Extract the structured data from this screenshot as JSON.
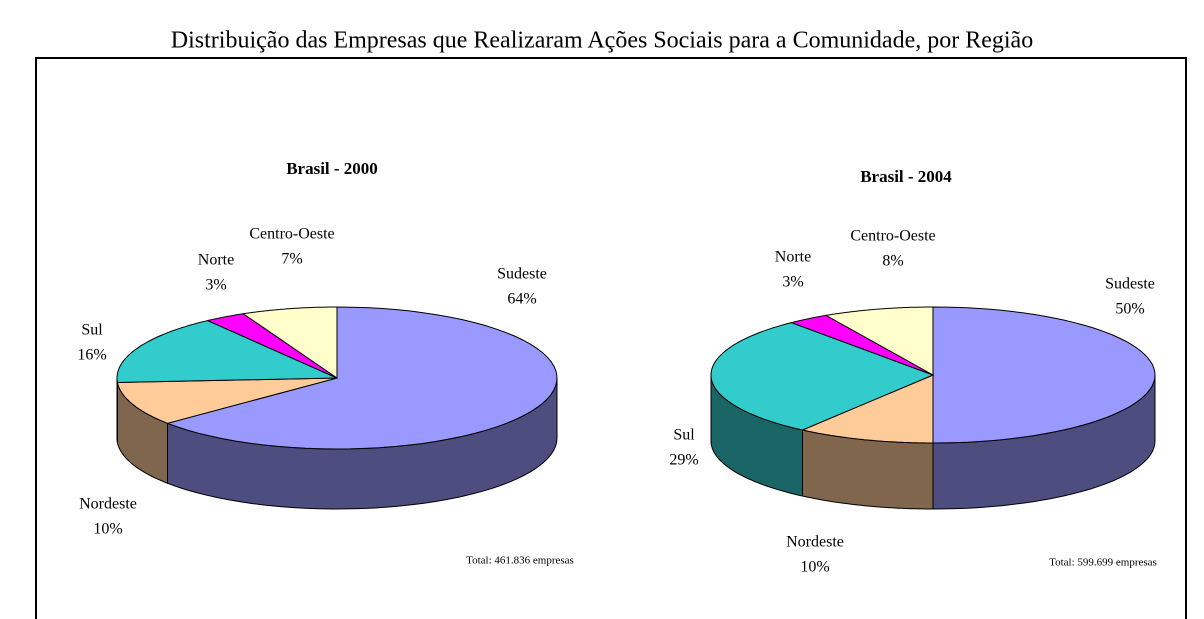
{
  "title": "Distribuição das Empresas que Realizaram Ações Sociais para a Comunidade, por Região",
  "chart_data": [
    {
      "type": "pie",
      "title": "Brasil - 2000",
      "annotation": "Total: 461.836 empresas",
      "categories": [
        "Sudeste",
        "Nordeste",
        "Sul",
        "Norte",
        "Centro-Oeste"
      ],
      "values": [
        64,
        10,
        16,
        3,
        7
      ],
      "value_labels": [
        "64%",
        "10%",
        "16%",
        "3%",
        "7%"
      ],
      "colors": [
        "#9999ff",
        "#ffcc99",
        "#33cccc",
        "#ff00ff",
        "#ffffcc"
      ]
    },
    {
      "type": "pie",
      "title": "Brasil - 2004",
      "annotation": "Total: 599.699 empresas",
      "categories": [
        "Sudeste",
        "Nordeste",
        "Sul",
        "Norte",
        "Centro-Oeste"
      ],
      "values": [
        50,
        10,
        29,
        3,
        8
      ],
      "value_labels": [
        "50%",
        "10%",
        "29%",
        "3%",
        "8%"
      ],
      "colors": [
        "#9999ff",
        "#ffcc99",
        "#33cccc",
        "#ff00ff",
        "#ffffcc"
      ]
    }
  ]
}
